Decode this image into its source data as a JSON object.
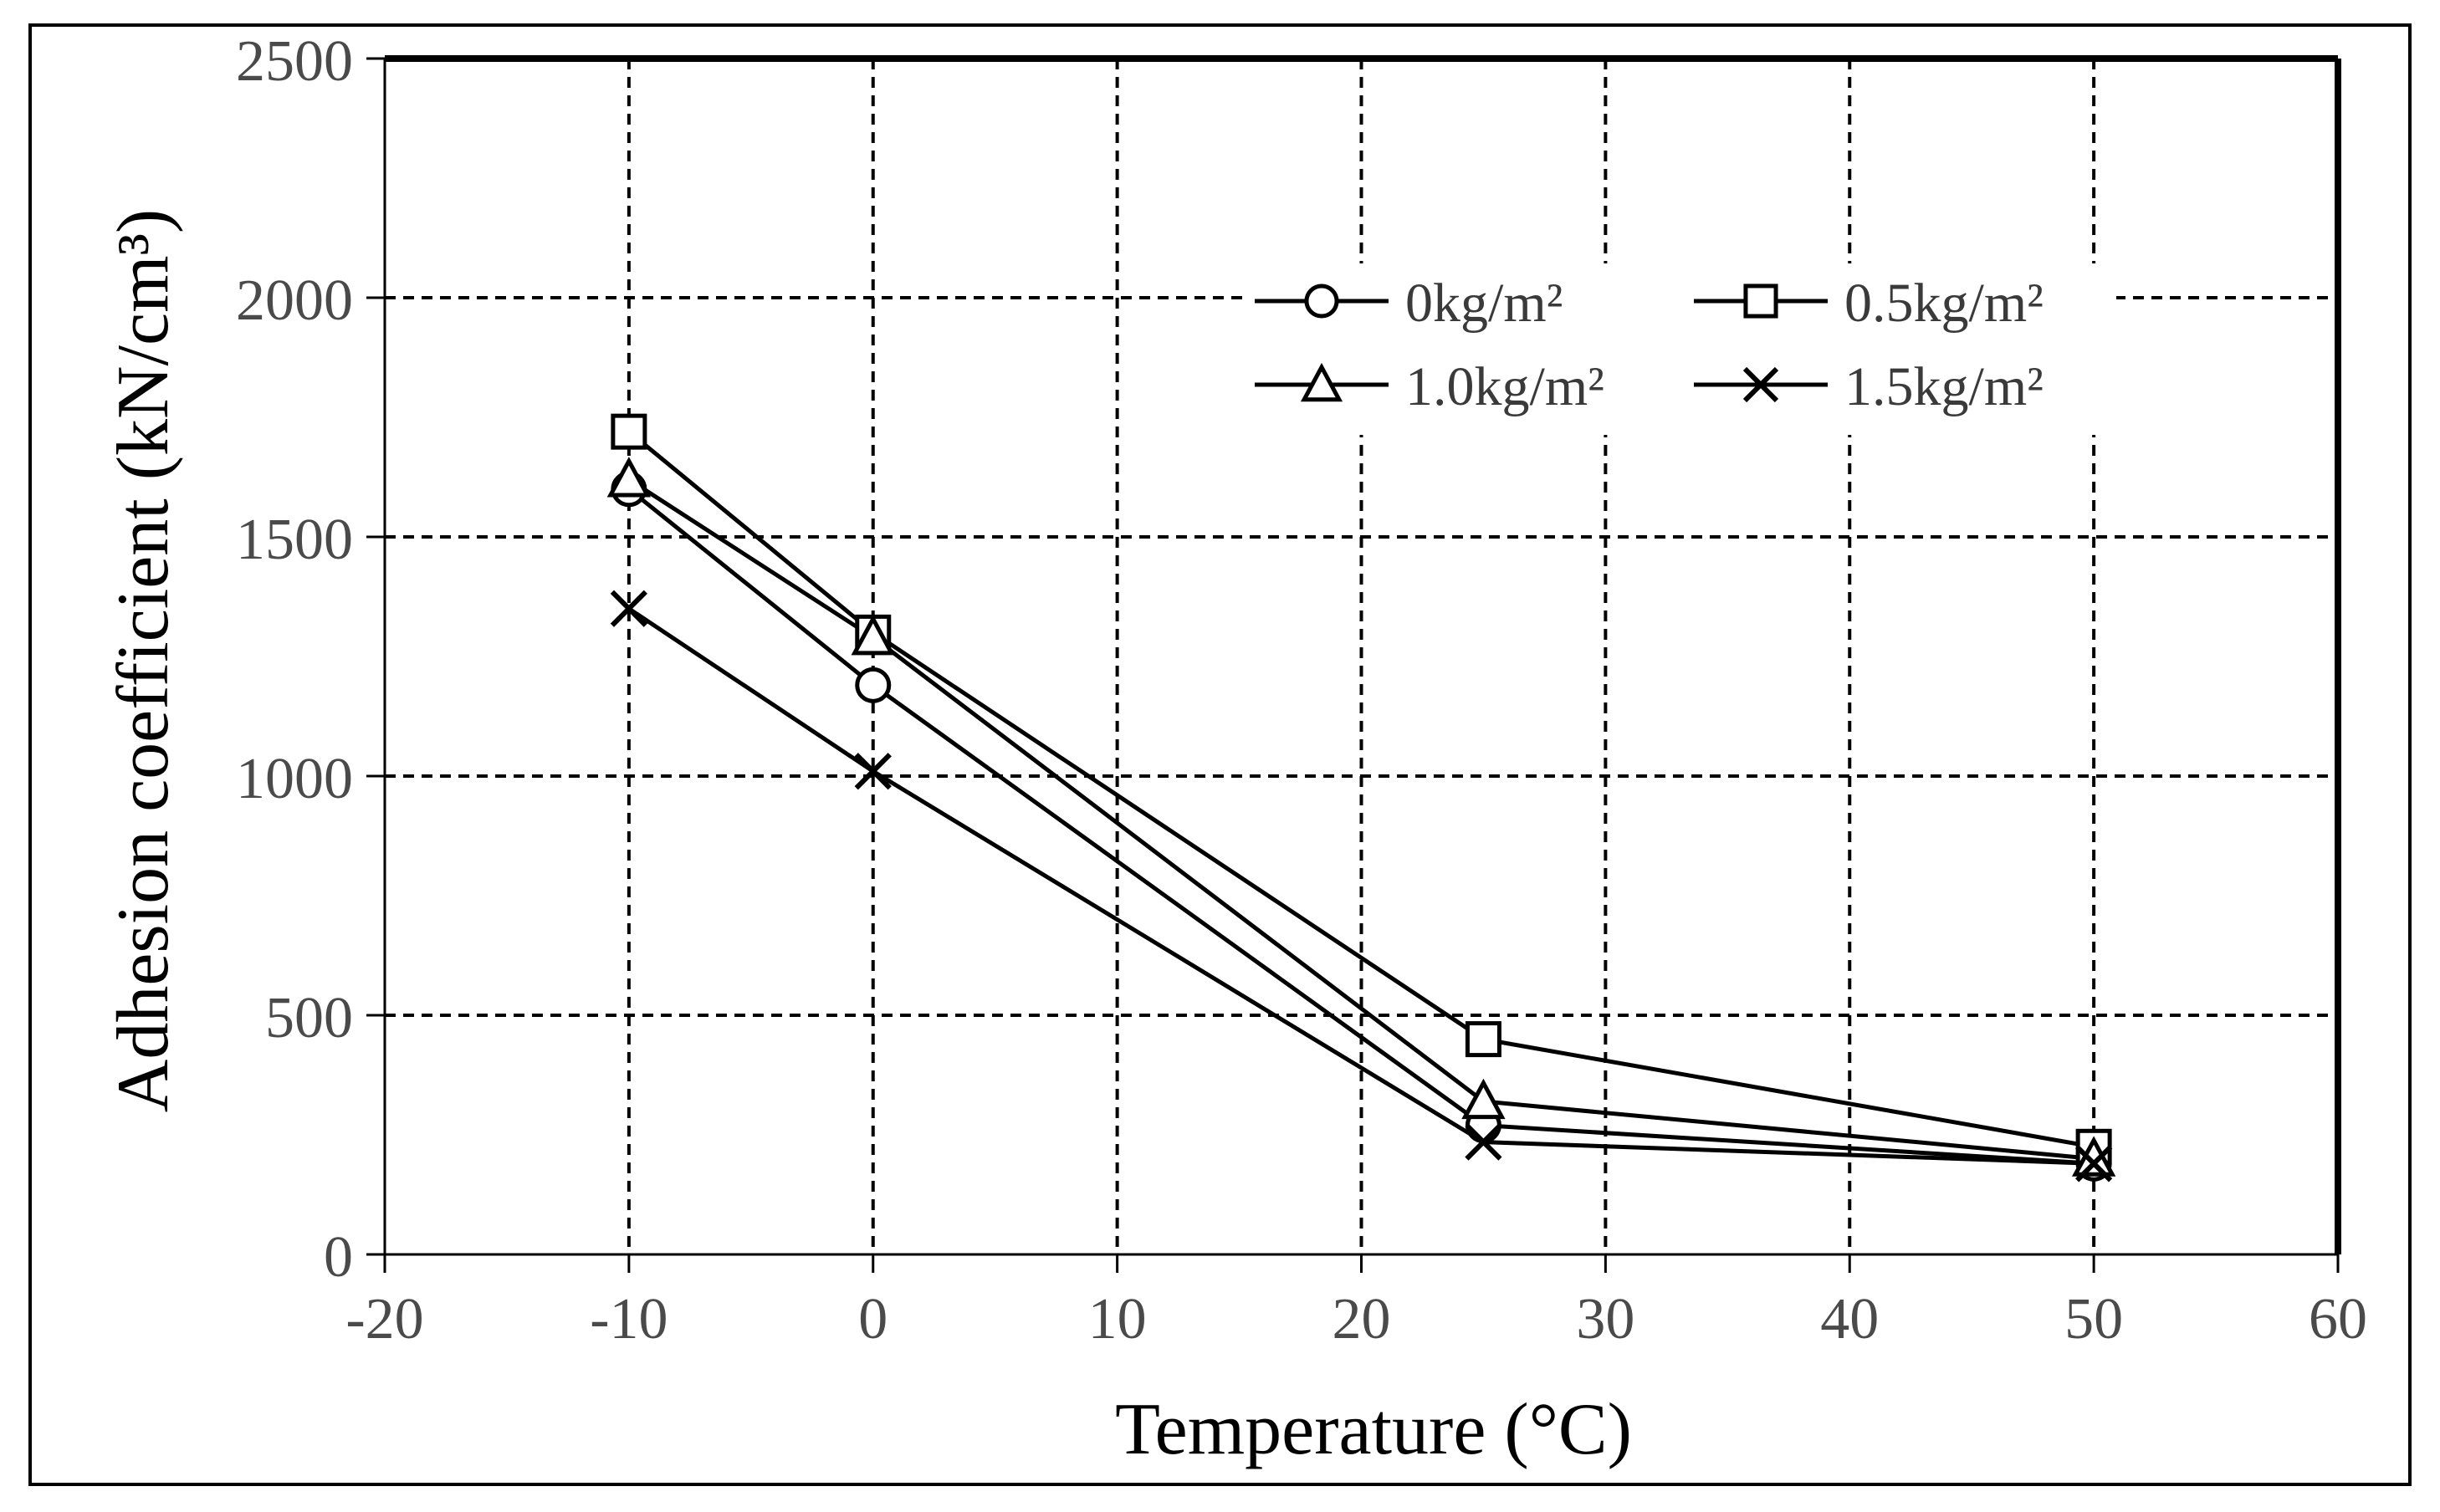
{
  "chart_data": {
    "type": "line",
    "title": "",
    "xlabel": "Temperature (°C)",
    "ylabel": "Adhesion coefficient (kN/cm³)",
    "xlim": [
      -20,
      60
    ],
    "ylim": [
      0,
      2500
    ],
    "xticks": [
      -20,
      -10,
      0,
      10,
      20,
      30,
      40,
      50,
      60
    ],
    "yticks": [
      0,
      500,
      1000,
      1500,
      2000,
      2500
    ],
    "xtick_labels": [
      "-20",
      "-10",
      "0",
      "10",
      "20",
      "30",
      "40",
      "50",
      "60"
    ],
    "ytick_labels": [
      "0",
      "500",
      "1000",
      "1500",
      "2000",
      "2500"
    ],
    "grid": true,
    "legend_position": "top-right",
    "x": [
      -10,
      0,
      25,
      50
    ],
    "series": [
      {
        "name": "0kg/m²",
        "marker": "circle",
        "values": [
          1600,
          1190,
          270,
          190
        ]
      },
      {
        "name": "0.5kg/m²",
        "marker": "square",
        "values": [
          1720,
          1300,
          450,
          225
        ]
      },
      {
        "name": "1.0kg/m²",
        "marker": "triangle",
        "values": [
          1620,
          1290,
          320,
          200
        ]
      },
      {
        "name": "1.5kg/m²",
        "marker": "x",
        "values": [
          1350,
          1010,
          235,
          190
        ]
      }
    ],
    "colors": {
      "line": "#000000",
      "grid": "#000000",
      "background": "#ffffff"
    }
  }
}
